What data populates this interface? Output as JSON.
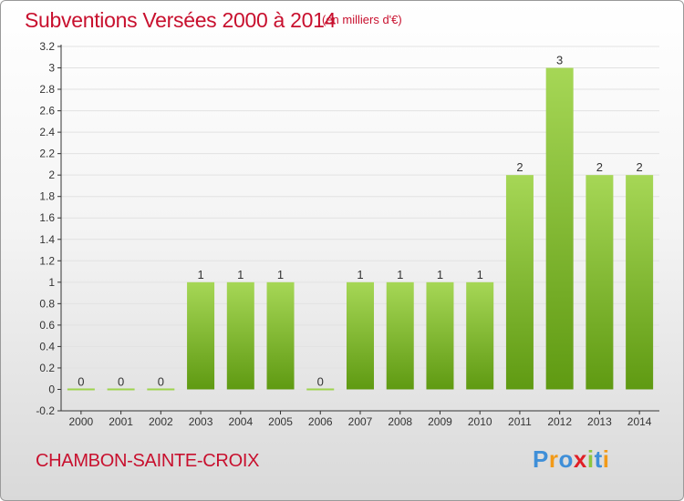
{
  "header": {
    "title": "Subventions Versées 2000 à 2014",
    "unit_note": "(en milliers d'€)"
  },
  "footer": {
    "commune": "CHAMBON-SAINTE-CROIX",
    "logo_letters": [
      "P",
      "r",
      "o",
      "x",
      "i",
      "t",
      "i"
    ],
    "logo_colors": [
      "#3f8fd8",
      "#f29a18",
      "#3f8fd8",
      "#e01f26",
      "#8dc63f",
      "#3f8fd8",
      "#f29a18"
    ]
  },
  "colors": {
    "title": "#c8102e",
    "bar_light": "#9ed34d",
    "bar_dark": "#5f9a12",
    "axis": "#333333",
    "grid": "#e2e2e2"
  },
  "chart_data": {
    "type": "bar",
    "categories": [
      "2000",
      "2001",
      "2002",
      "2003",
      "2004",
      "2005",
      "2006",
      "2007",
      "2008",
      "2009",
      "2010",
      "2011",
      "2012",
      "2013",
      "2014"
    ],
    "values": [
      0,
      0,
      0,
      1,
      1,
      1,
      0,
      1,
      1,
      1,
      1,
      2,
      3,
      2,
      2
    ],
    "data_labels": [
      "0",
      "0",
      "0",
      "1",
      "1",
      "1",
      "0",
      "1",
      "1",
      "1",
      "1",
      "2",
      "3",
      "2",
      "2"
    ],
    "yticks": [
      "-0.2",
      "0",
      "0.2",
      "0.4",
      "0.6",
      "0.8",
      "1",
      "1.2",
      "1.4",
      "1.6",
      "1.8",
      "2",
      "2.2",
      "2.4",
      "2.6",
      "2.8",
      "3",
      "3.2"
    ],
    "ylim": [
      -0.2,
      3.2
    ],
    "grid": true
  }
}
